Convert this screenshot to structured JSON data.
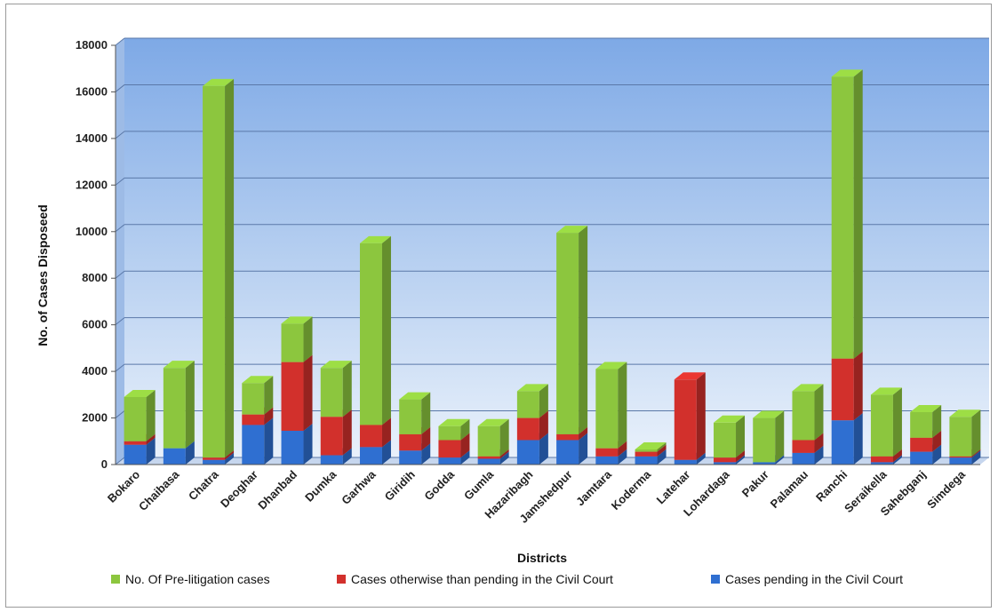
{
  "chart_data": {
    "type": "bar",
    "stacked": true,
    "style": "3d",
    "title": "",
    "xlabel": "Districts",
    "ylabel": "No. of Cases Disposeed",
    "ylim": [
      0,
      18000
    ],
    "yticks": [
      "0",
      "2000",
      "4000",
      "6000",
      "8000",
      "10000",
      "12000",
      "14000",
      "16000",
      "18000"
    ],
    "grid": true,
    "legend_position": "bottom",
    "categories": [
      "Bokaro",
      "Chaibasa",
      "Chatra",
      "Deoghar",
      "Dhanbad",
      "Dumka",
      "Garhwa",
      "Giridih",
      "Godda",
      "Gumla",
      "Hazaribagh",
      "Jamshedpur",
      "Jamtara",
      "Koderma",
      "Latehar",
      "Lohardaga",
      "Pakur",
      "Palamau",
      "Ranchi",
      "Seraikella",
      "Sahebganj",
      "Simdega"
    ],
    "series": [
      {
        "name": "Cases pending in the Civil Court",
        "color": "#2f6fd1",
        "values": [
          850,
          700,
          200,
          1700,
          1450,
          400,
          750,
          600,
          300,
          250,
          1050,
          1050,
          350,
          350,
          200,
          100,
          100,
          500,
          1900,
          100,
          550,
          300
        ]
      },
      {
        "name": "Cases otherwise than pending in the Civil Court",
        "color": "#d2302c",
        "values": [
          150,
          0,
          100,
          450,
          2950,
          1650,
          950,
          700,
          750,
          100,
          950,
          250,
          350,
          200,
          3450,
          200,
          0,
          550,
          2650,
          250,
          600,
          50
        ]
      },
      {
        "name": "No. Of Pre-litigation cases",
        "color": "#8cc63e",
        "values": [
          1900,
          3450,
          15950,
          1350,
          1650,
          2100,
          7800,
          1500,
          600,
          1300,
          1150,
          8650,
          3400,
          100,
          0,
          1500,
          1900,
          2100,
          12100,
          2650,
          1100,
          1700
        ]
      }
    ],
    "legend_order": [
      "No. Of Pre-litigation cases",
      "Cases otherwise than pending in the Civil Court",
      "Cases pending in the Civil Court"
    ]
  }
}
